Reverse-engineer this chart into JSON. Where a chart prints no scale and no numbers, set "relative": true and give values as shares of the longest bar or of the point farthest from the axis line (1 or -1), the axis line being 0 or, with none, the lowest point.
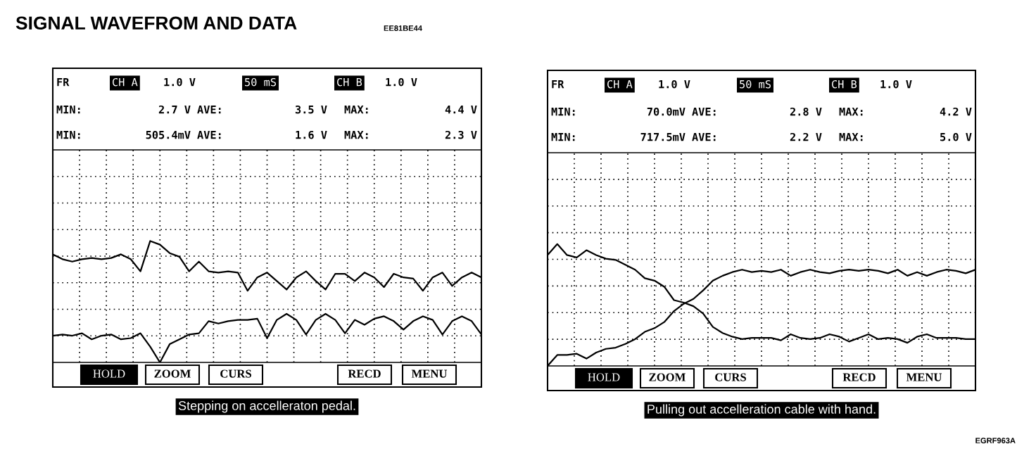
{
  "chart_data": [
    {
      "type": "line",
      "relative": true,
      "grid": true,
      "legend": false,
      "marker": "none",
      "line_style": "solid",
      "categories": [
        null,
        null,
        null,
        null,
        null,
        null,
        null,
        null,
        null,
        null,
        null,
        null,
        null,
        null,
        null,
        null,
        null,
        null,
        null,
        null,
        null,
        null,
        null,
        null,
        null,
        null,
        null,
        null,
        null,
        null,
        null,
        null,
        null,
        null,
        null,
        null,
        null,
        null,
        null,
        null,
        null,
        null,
        null,
        null,
        null
      ],
      "series": [
        {
          "color": "#000000",
          "values": [
            0.89,
            0.85,
            0.83,
            0.85,
            0.86,
            0.85,
            0.86,
            0.89,
            0.85,
            0.75,
            1.0,
            0.97,
            0.9,
            0.87,
            0.75,
            0.83,
            0.75,
            0.74,
            0.75,
            0.74,
            0.59,
            0.7,
            0.74,
            0.67,
            0.6,
            0.7,
            0.75,
            0.67,
            0.6,
            0.73,
            0.73,
            0.67,
            0.74,
            0.7,
            0.62,
            0.73,
            0.7,
            0.69,
            0.59,
            0.7,
            0.74,
            0.63,
            0.7,
            0.74,
            0.7
          ]
        },
        {
          "color": "#000000",
          "values": [
            0.22,
            0.23,
            0.22,
            0.24,
            0.19,
            0.22,
            0.23,
            0.19,
            0.2,
            0.24,
            0.13,
            0.0,
            0.15,
            0.19,
            0.23,
            0.24,
            0.34,
            0.32,
            0.34,
            0.35,
            0.35,
            0.36,
            0.2,
            0.35,
            0.4,
            0.35,
            0.23,
            0.35,
            0.4,
            0.35,
            0.24,
            0.35,
            0.31,
            0.36,
            0.38,
            0.34,
            0.27,
            0.34,
            0.38,
            0.35,
            0.23,
            0.34,
            0.38,
            0.34,
            0.23
          ]
        }
      ],
      "annotations": [
        "SIGNAL WAVEFROM AND DATA",
        "EE81BE44",
        "FR",
        "CH A",
        "1.0 V",
        "50 mS",
        "CH B",
        "1.0 V",
        "MIN:",
        "2.7 V",
        "AVE:",
        "3.5 V",
        "MAX:",
        "4.4 V",
        "MIN:",
        "505.4mV",
        "AVE:",
        "1.6 V",
        "MAX:",
        "2.3 V",
        "HOLD",
        "ZOOM",
        "CURS",
        "RECD",
        "MENU",
        "Stepping on accelleraton pedal."
      ]
    },
    {
      "type": "line",
      "relative": true,
      "grid": true,
      "legend": false,
      "marker": "none",
      "line_style": "solid",
      "categories": [
        null,
        null,
        null,
        null,
        null,
        null,
        null,
        null,
        null,
        null,
        null,
        null,
        null,
        null,
        null,
        null,
        null,
        null,
        null,
        null,
        null,
        null,
        null,
        null,
        null,
        null,
        null,
        null,
        null,
        null,
        null,
        null,
        null,
        null,
        null,
        null,
        null,
        null,
        null,
        null,
        null,
        null,
        null,
        null,
        null
      ],
      "series": [
        {
          "color": "#000000",
          "values": [
            0.91,
            1.0,
            0.91,
            0.89,
            0.95,
            0.91,
            0.88,
            0.87,
            0.83,
            0.79,
            0.72,
            0.7,
            0.65,
            0.54,
            0.52,
            0.49,
            0.43,
            0.32,
            0.27,
            0.24,
            0.22,
            0.23,
            0.23,
            0.23,
            0.21,
            0.26,
            0.23,
            0.22,
            0.23,
            0.26,
            0.24,
            0.2,
            0.23,
            0.26,
            0.22,
            0.23,
            0.22,
            0.19,
            0.24,
            0.26,
            0.23,
            0.23,
            0.23,
            0.22,
            0.22
          ]
        },
        {
          "color": "#000000",
          "values": [
            0.0,
            0.09,
            0.09,
            0.1,
            0.06,
            0.11,
            0.14,
            0.15,
            0.18,
            0.22,
            0.28,
            0.31,
            0.36,
            0.45,
            0.51,
            0.55,
            0.62,
            0.7,
            0.74,
            0.77,
            0.79,
            0.77,
            0.78,
            0.77,
            0.79,
            0.74,
            0.77,
            0.79,
            0.77,
            0.76,
            0.78,
            0.79,
            0.78,
            0.79,
            0.78,
            0.76,
            0.79,
            0.74,
            0.77,
            0.74,
            0.77,
            0.79,
            0.78,
            0.76,
            0.79
          ]
        }
      ],
      "annotations": [
        "FR",
        "CH A",
        "1.0 V",
        "50 mS",
        "CH B",
        "1.0 V",
        "MIN:",
        "70.0mV",
        "AVE:",
        "2.8 V",
        "MAX:",
        "4.2 V",
        "MIN:",
        "717.5mV",
        "AVE:",
        "2.2 V",
        "MAX:",
        "5.0 V",
        "HOLD",
        "ZOOM",
        "CURS",
        "RECD",
        "MENU",
        "Pulling out accelleration cable with hand.",
        "EGRF963A"
      ]
    }
  ]
}
